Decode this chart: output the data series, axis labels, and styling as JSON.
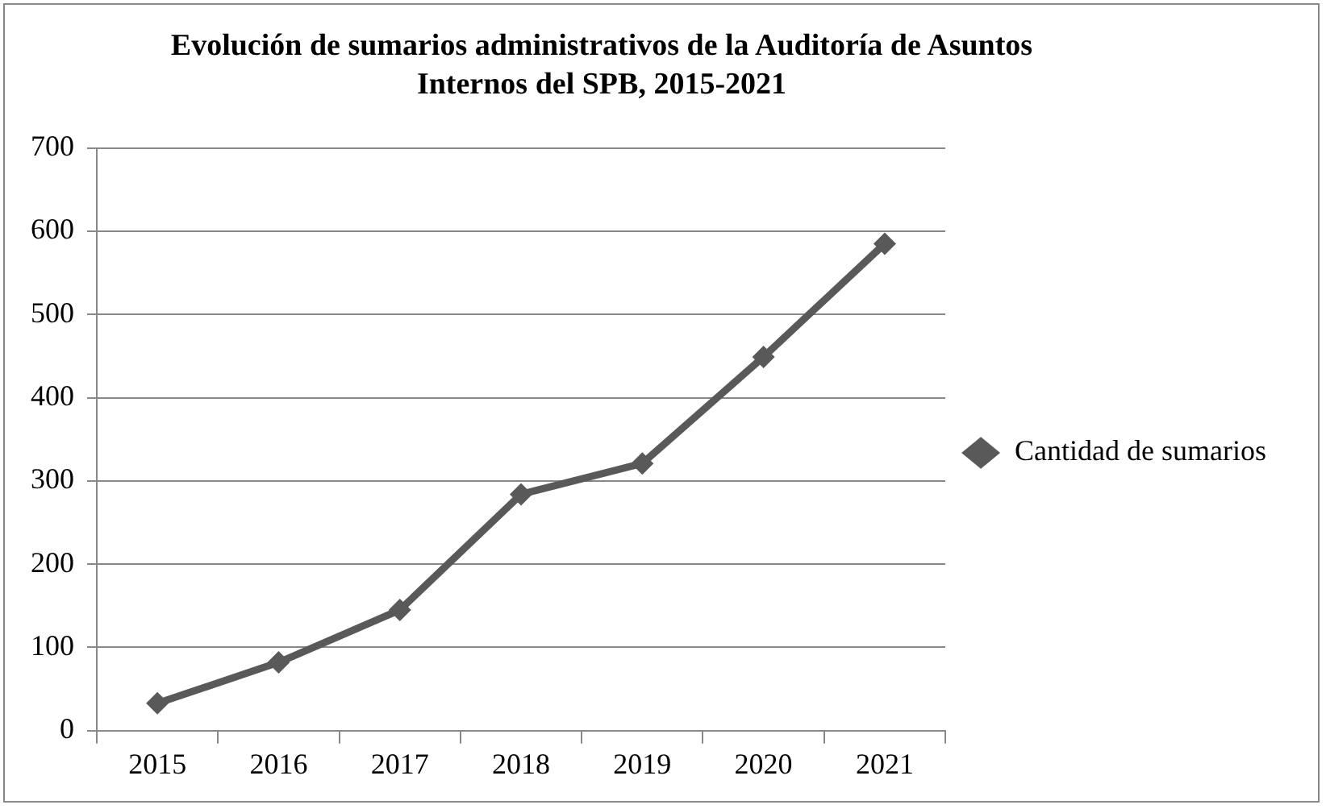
{
  "chart_data": {
    "type": "line",
    "title": "Evolución de sumarios administrativos de la Auditoría de Asuntos Internos del SPB, 2015-2021",
    "categories": [
      "2015",
      "2016",
      "2017",
      "2018",
      "2019",
      "2020",
      "2021"
    ],
    "series": [
      {
        "name": "Cantidad de sumarios",
        "color": "#595959",
        "values": [
          33,
          82,
          145,
          284,
          321,
          449,
          585
        ]
      }
    ],
    "ylim": [
      0,
      700
    ],
    "yticks": [
      0,
      100,
      200,
      300,
      400,
      500,
      600,
      700
    ],
    "grid": "y",
    "legend": "right",
    "marker": "diamond",
    "line_style": "solid"
  }
}
